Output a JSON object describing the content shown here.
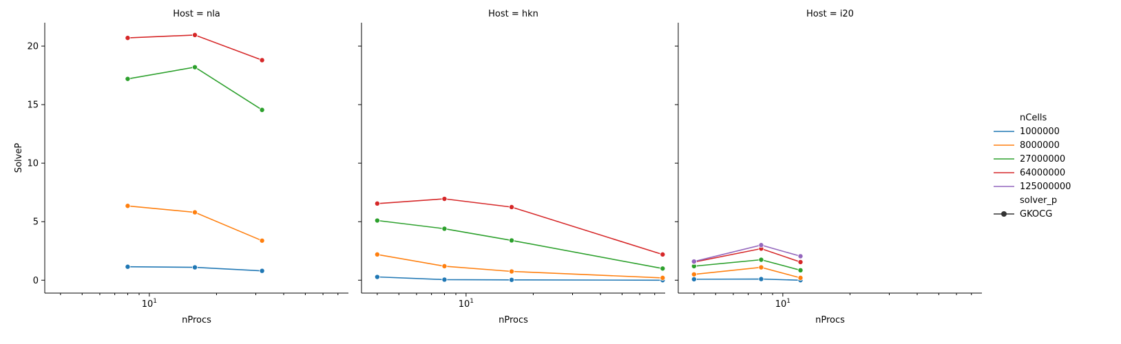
{
  "chart_data": {
    "type": "line",
    "facet_label": "Host",
    "xlabel": "nProcs",
    "ylabel": "SolveP",
    "xscale": "log",
    "xlim": [
      3.4,
      78
    ],
    "ylim": [
      -1.1,
      22
    ],
    "x_tick_labels": [
      {
        "value": 10,
        "base": "10",
        "exp": "1"
      }
    ],
    "y_ticks": [
      0,
      5,
      10,
      15,
      20
    ],
    "grid": false,
    "legend": {
      "placement": "right",
      "hue_title": "nCells",
      "style_title": "solver_p",
      "style_entries": [
        "GKOCG"
      ]
    },
    "colors": {
      "1000000": "#1f77b4",
      "8000000": "#ff7f0e",
      "27000000": "#2ca02c",
      "64000000": "#d62728",
      "125000000": "#9467bd"
    },
    "series_names": [
      "1000000",
      "8000000",
      "27000000",
      "64000000",
      "125000000"
    ],
    "panels": [
      {
        "host": "nla",
        "title": "Host = nla",
        "series": [
          {
            "name": "1000000",
            "x": [
              8,
              16,
              32
            ],
            "y": [
              1.15,
              1.1,
              0.8
            ]
          },
          {
            "name": "8000000",
            "x": [
              8,
              16,
              32
            ],
            "y": [
              6.35,
              5.8,
              3.38
            ]
          },
          {
            "name": "27000000",
            "x": [
              8,
              16,
              32
            ],
            "y": [
              17.2,
              18.2,
              14.55
            ]
          },
          {
            "name": "64000000",
            "x": [
              8,
              16,
              32
            ],
            "y": [
              20.7,
              20.95,
              18.8
            ]
          }
        ]
      },
      {
        "host": "hkn",
        "title": "Host = hkn",
        "series": [
          {
            "name": "1000000",
            "x": [
              4,
              8,
              16,
              76
            ],
            "y": [
              0.28,
              0.05,
              0.03,
              0.0
            ]
          },
          {
            "name": "8000000",
            "x": [
              4,
              8,
              16,
              76
            ],
            "y": [
              2.2,
              1.2,
              0.75,
              0.2
            ]
          },
          {
            "name": "27000000",
            "x": [
              4,
              8,
              16,
              76
            ],
            "y": [
              5.1,
              4.4,
              3.4,
              1.0
            ]
          },
          {
            "name": "64000000",
            "x": [
              4,
              8,
              16,
              76
            ],
            "y": [
              6.55,
              6.95,
              6.25,
              2.2
            ]
          }
        ]
      },
      {
        "host": "i20",
        "title": "Host = i20",
        "series": [
          {
            "name": "1000000",
            "x": [
              4,
              8,
              12
            ],
            "y": [
              0.08,
              0.1,
              0.0
            ]
          },
          {
            "name": "8000000",
            "x": [
              4,
              8,
              12
            ],
            "y": [
              0.5,
              1.1,
              0.2
            ]
          },
          {
            "name": "27000000",
            "x": [
              4,
              8,
              12
            ],
            "y": [
              1.2,
              1.75,
              0.85
            ]
          },
          {
            "name": "64000000",
            "x": [
              4,
              8,
              12
            ],
            "y": [
              1.55,
              2.7,
              1.55
            ]
          },
          {
            "name": "125000000",
            "x": [
              4,
              8,
              12
            ],
            "y": [
              1.6,
              3.0,
              2.05
            ]
          }
        ]
      }
    ]
  }
}
